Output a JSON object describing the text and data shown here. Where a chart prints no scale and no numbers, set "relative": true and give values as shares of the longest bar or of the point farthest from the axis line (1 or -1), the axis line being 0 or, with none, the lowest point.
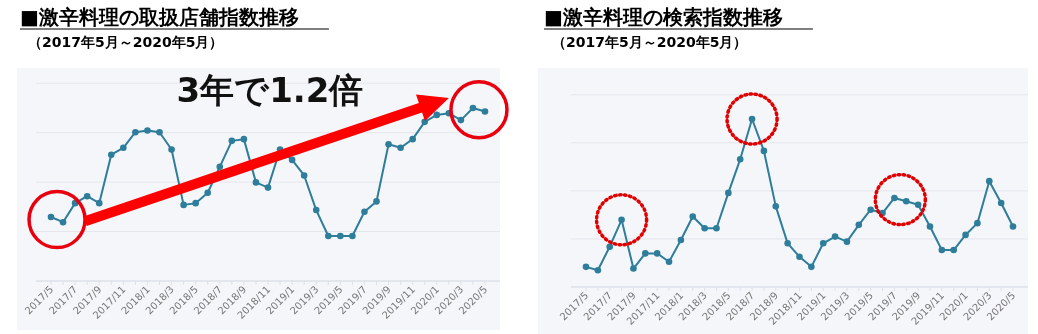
{
  "chart_data": [
    {
      "type": "line",
      "title": "■激辛料理の取扱店舗指数推移",
      "subtitle": "（2017年5月～2020年5月）",
      "relative": true,
      "marker": "circle",
      "grid": "y",
      "color": "#2e7d9a",
      "annotations": [
        "3年で1.2倍"
      ],
      "categories": [
        "2017/5",
        null,
        "2017/7",
        null,
        "2017/9",
        null,
        "2017/11",
        null,
        "2018/1",
        null,
        "2018/3",
        null,
        "2018/5",
        null,
        "2018/7",
        null,
        "2018/9",
        null,
        "2018/11",
        null,
        "2019/1",
        null,
        "2019/3",
        null,
        "2019/5",
        null,
        "2019/7",
        null,
        "2019/9",
        null,
        "2019/11",
        null,
        "2020/1",
        null,
        "2020/3",
        null,
        "2020/5"
      ],
      "values": [
        0.37,
        0.34,
        0.45,
        0.49,
        0.45,
        0.73,
        0.77,
        0.86,
        0.87,
        0.86,
        0.76,
        0.44,
        0.45,
        0.51,
        0.66,
        0.81,
        0.82,
        0.57,
        0.54,
        0.76,
        0.7,
        0.61,
        0.41,
        0.26,
        0.26,
        0.26,
        0.4,
        0.46,
        0.79,
        0.77,
        0.82,
        0.92,
        0.96,
        0.97,
        0.93,
        1,
        0.98
      ]
    },
    {
      "type": "line",
      "title": "■激辛料理の検索指数推移",
      "subtitle": "（2017年5月～2020年5月）",
      "relative": true,
      "marker": "circle",
      "grid": "y",
      "color": "#2e7d9a",
      "categories": [
        "2017/5",
        null,
        "2017/7",
        null,
        "2017/9",
        null,
        "2017/11",
        null,
        "2018/1",
        null,
        "2018/3",
        null,
        "2018/5",
        null,
        "2018/7",
        null,
        "2018/9",
        null,
        "2018/11",
        null,
        "2019/1",
        null,
        "2019/3",
        null,
        "2019/5",
        null,
        "2019/7",
        null,
        "2019/9",
        null,
        "2019/11",
        null,
        "2020/1",
        null,
        "2020/3",
        null,
        "2020/5"
      ],
      "values": [
        0.12,
        0.1,
        0.24,
        0.4,
        0.11,
        0.2,
        0.2,
        0.15,
        0.28,
        0.42,
        0.35,
        0.35,
        0.56,
        0.76,
        1,
        0.81,
        0.48,
        0.26,
        0.18,
        0.12,
        0.26,
        0.3,
        0.27,
        0.37,
        0.46,
        0.44,
        0.53,
        0.51,
        0.49,
        0.36,
        0.22,
        0.22,
        0.31,
        0.38,
        0.63,
        0.5,
        0.36
      ]
    }
  ]
}
